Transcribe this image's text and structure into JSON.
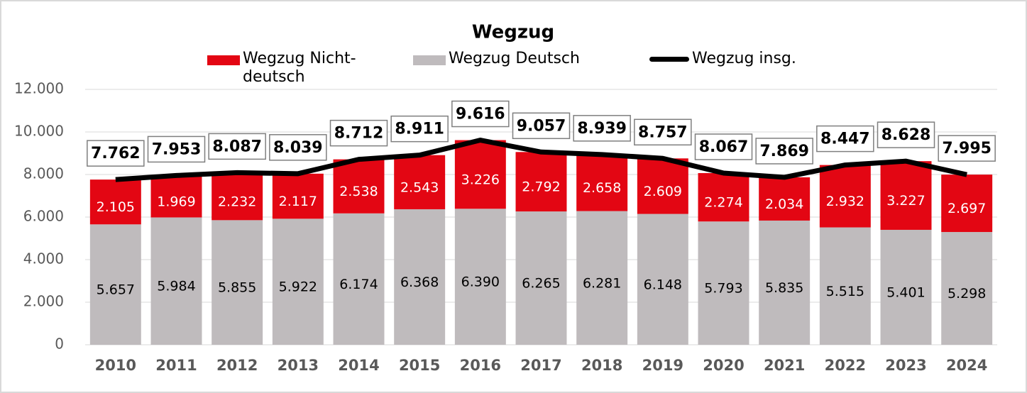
{
  "chart_data": {
    "type": "bar",
    "stacked": true,
    "title": "Wegzug",
    "categories": [
      "2010",
      "2011",
      "2012",
      "2013",
      "2014",
      "2015",
      "2016",
      "2017",
      "2018",
      "2019",
      "2020",
      "2021",
      "2022",
      "2023",
      "2024"
    ],
    "series": [
      {
        "name": "Wegzug Nicht-deutsch",
        "type": "bar",
        "color": "#e30613",
        "values": [
          2105,
          1969,
          2232,
          2117,
          2538,
          2543,
          3226,
          2792,
          2658,
          2609,
          2274,
          2034,
          2932,
          3227,
          2697
        ],
        "value_labels": [
          "2.105",
          "1.969",
          "2.232",
          "2.117",
          "2.538",
          "2.543",
          "3.226",
          "2.792",
          "2.658",
          "2.609",
          "2.274",
          "2.034",
          "2.932",
          "3.227",
          "2.697"
        ]
      },
      {
        "name": "Wegzug Deutsch",
        "type": "bar",
        "color": "#bfbbbd",
        "values": [
          5657,
          5984,
          5855,
          5922,
          6174,
          6368,
          6390,
          6265,
          6281,
          6148,
          5793,
          5835,
          5515,
          5401,
          5298
        ],
        "value_labels": [
          "5.657",
          "5.984",
          "5.855",
          "5.922",
          "6.174",
          "6.368",
          "6.390",
          "6.265",
          "6.281",
          "6.148",
          "5.793",
          "5.835",
          "5.515",
          "5.401",
          "5.298"
        ]
      },
      {
        "name": "Wegzug insg.",
        "type": "line",
        "color": "#000000",
        "values": [
          7762,
          7953,
          8087,
          8039,
          8712,
          8911,
          9616,
          9057,
          8939,
          8757,
          8067,
          7869,
          8447,
          8628,
          7995
        ],
        "value_labels": [
          "7.762",
          "7.953",
          "8.087",
          "8.039",
          "8.712",
          "8.911",
          "9.616",
          "9.057",
          "8.939",
          "8.757",
          "8.067",
          "7.869",
          "8.447",
          "8.628",
          "7.995"
        ]
      }
    ],
    "ylim": [
      0,
      12000
    ],
    "yticks": [
      0,
      {
        "value": 2000,
        "label": "2.000"
      },
      {
        "value": 4000,
        "label": "4.000"
      },
      {
        "value": 6000,
        "label": "6.000"
      },
      {
        "value": 8000,
        "label": "8.000"
      },
      {
        "value": 10000,
        "label": "10.000"
      },
      {
        "value": 12000,
        "label": "12.000"
      }
    ],
    "grid": true,
    "legend": "top"
  }
}
